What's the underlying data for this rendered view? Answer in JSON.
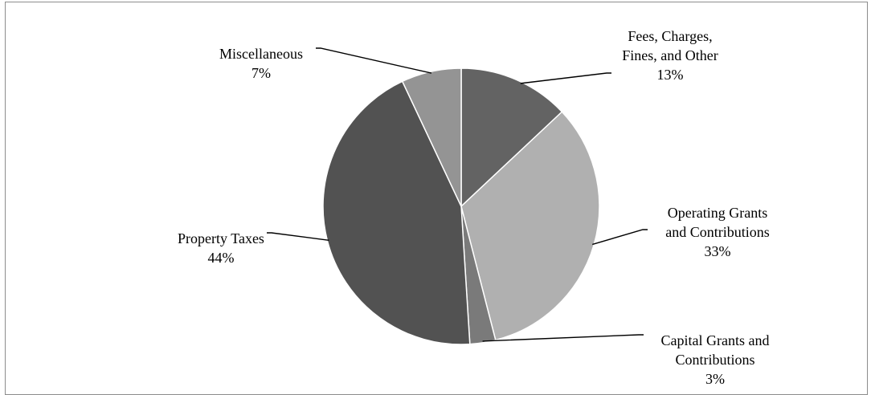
{
  "chart_data": {
    "type": "pie",
    "title": "",
    "slices": [
      {
        "label_lines": [
          "Fees, Charges,",
          "Fines, and Other"
        ],
        "percent_label": "13%",
        "value": 13,
        "color": "#636363"
      },
      {
        "label_lines": [
          "Operating Grants",
          "and Contributions"
        ],
        "percent_label": "33%",
        "value": 33,
        "color": "#b0b0b0"
      },
      {
        "label_lines": [
          "Capital Grants and",
          "Contributions"
        ],
        "percent_label": "3%",
        "value": 3,
        "color": "#7a7a7a"
      },
      {
        "label_lines": [
          "Property Taxes"
        ],
        "percent_label": "44%",
        "value": 44,
        "color": "#525252"
      },
      {
        "label_lines": [
          "Miscellaneous"
        ],
        "percent_label": "7%",
        "value": 7,
        "color": "#949494"
      }
    ],
    "start_angle": "12 o'clock",
    "direction": "clockwise",
    "legend": "none",
    "data_labels": "outside with leader lines"
  }
}
